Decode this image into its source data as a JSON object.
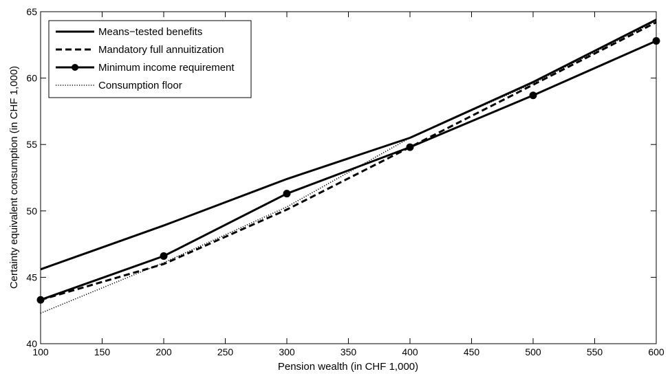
{
  "chart_data": {
    "type": "line",
    "title": "",
    "xlabel": "Pension wealth (in CHF 1,000)",
    "ylabel": "Certainty equivalent consumption (in CHF 1,000)",
    "xlim": [
      100,
      600
    ],
    "ylim": [
      40,
      65
    ],
    "xticks": [
      100,
      150,
      200,
      250,
      300,
      350,
      400,
      450,
      500,
      550,
      600
    ],
    "yticks": [
      40,
      45,
      50,
      55,
      60,
      65
    ],
    "grid": false,
    "legend_position": "top-left",
    "x": [
      100,
      200,
      300,
      400,
      500,
      600
    ],
    "series": [
      {
        "name": "Means−tested benefits",
        "values": [
          45.6,
          48.9,
          52.4,
          55.5,
          59.7,
          64.4
        ],
        "style": "solid",
        "marker": "none",
        "color": "#000000"
      },
      {
        "name": "Mandatory full annuitization",
        "values": [
          43.3,
          46.0,
          50.1,
          54.8,
          59.5,
          64.2
        ],
        "style": "dashed",
        "marker": "none",
        "color": "#000000"
      },
      {
        "name": "Minimum income requirement",
        "values": [
          43.3,
          46.6,
          51.3,
          54.8,
          58.7,
          62.8
        ],
        "style": "solid",
        "marker": "circle",
        "color": "#000000"
      },
      {
        "name": "Consumption floor",
        "values": [
          42.3,
          46.1,
          50.3,
          55.5,
          59.6,
          64.3
        ],
        "style": "dotted",
        "marker": "none",
        "color": "#000000"
      }
    ]
  }
}
